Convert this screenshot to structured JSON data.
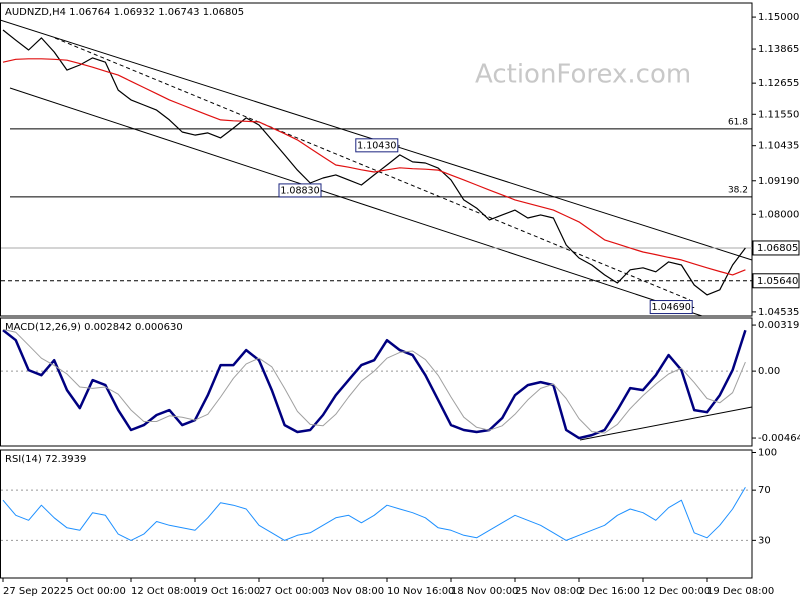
{
  "chart_data": [
    {
      "type": "line",
      "title": "AUDNZD,H4  1.06764 1.06932 1.06743 1.06805",
      "watermark": "ActionForex.com",
      "categories": [
        "27 Sep 2022",
        null,
        null,
        null,
        null,
        "5 Oct 00:00",
        null,
        null,
        null,
        null,
        "12 Oct 08:00",
        null,
        null,
        null,
        null,
        "19 Oct 16:00",
        null,
        null,
        null,
        null,
        "27 Oct 00:00",
        null,
        null,
        null,
        null,
        "3 Nov 08:00",
        null,
        null,
        null,
        null,
        "10 Nov 16:00",
        null,
        null,
        null,
        null,
        "18 Nov 00:00",
        null,
        null,
        null,
        null,
        "25 Nov 08:00",
        null,
        null,
        null,
        null,
        "2 Dec 16:00",
        null,
        null,
        null,
        null,
        "12 Dec 00:00",
        null,
        null,
        null,
        null,
        "19 Dec 08:00",
        null,
        null,
        null
      ],
      "series": [
        {
          "color": "#000000",
          "values": [
            1.1454,
            1.1418,
            1.1383,
            1.1426,
            1.1376,
            1.1312,
            1.133,
            1.1355,
            1.134,
            1.1241,
            1.1206,
            1.1188,
            1.117,
            1.1135,
            1.1092,
            1.1081,
            1.1089,
            1.1071,
            1.1106,
            1.1142,
            1.1117,
            1.1064,
            1.1011,
            1.0957,
            1.0911,
            1.0929,
            1.094,
            1.0922,
            1.0904,
            1.094,
            1.0975,
            1.1011,
            1.0986,
            1.0982,
            1.0964,
            1.0922,
            1.0851,
            1.0822,
            1.078,
            1.0798,
            1.0815,
            1.0787,
            1.0798,
            1.0787,
            1.0691,
            1.0645,
            1.062,
            1.0585,
            1.0556,
            1.0603,
            1.061,
            1.0596,
            1.0631,
            1.062,
            1.0549,
            1.0514,
            1.0532,
            1.062,
            1.06805
          ]
        },
        {
          "color": "#e01010",
          "values": [
            1.134,
            1.135,
            1.1352,
            1.1352,
            1.135,
            1.1347,
            1.1335,
            1.1322,
            1.1308,
            1.1294,
            1.1272,
            1.125,
            1.1228,
            1.1206,
            1.1188,
            1.117,
            1.1152,
            1.1135,
            1.1132,
            1.113,
            1.1128,
            1.1107,
            1.1086,
            1.1064,
            1.1034,
            1.1004,
            1.0975,
            1.0967,
            1.0958,
            1.095,
            1.0958,
            1.0965,
            1.0962,
            1.096,
            1.0957,
            1.0939,
            1.0922,
            1.0904,
            1.0886,
            1.0869,
            1.0851,
            1.0839,
            1.0827,
            1.0815,
            1.0794,
            1.0773,
            1.0741,
            1.0709,
            1.0695,
            1.068,
            1.0666,
            1.0657,
            1.0647,
            1.0638,
            1.0624,
            1.061,
            1.0597,
            1.0585,
            1.0603
          ]
        }
      ],
      "ylim": [
        1.0439,
        1.155
      ],
      "yticks": [
        {
          "value": 1.15,
          "label": "1.15000"
        },
        1.13865,
        1.12655,
        {
          "value": 1.1155,
          "label": "1.11550"
        },
        1.10435,
        {
          "value": 1.0919,
          "label": "1.09190"
        },
        {
          "value": 1.08,
          "label": "1.08000"
        },
        1.04535
      ],
      "price_labels": [
        {
          "value": 1.06805,
          "label": "1.06805",
          "dashed": false
        },
        {
          "value": 1.0564,
          "label": "1.05640",
          "dashed": true
        }
      ],
      "levels": [
        {
          "name": "61.8",
          "value": 1.1103
        },
        {
          "name": "38.2",
          "value": 1.0862
        }
      ],
      "annotations": [
        {
          "label": "1.10430",
          "value": 1.1043,
          "x": 31
        },
        {
          "label": "1.08830",
          "value": 1.0883,
          "x": 25
        },
        {
          "label": "1.04690",
          "value": 1.0469,
          "x": 54
        }
      ]
    },
    {
      "type": "line",
      "title": "MACD(12,26,9) 0.002842 0.000630",
      "series": [
        {
          "color": "#000080",
          "width": 2.5,
          "values": [
            0.00285,
            0.00215,
            7e-05,
            -0.00028,
            0.00076,
            -0.00132,
            -0.00257,
            -0.00062,
            -0.00097,
            -0.00271,
            -0.00409,
            -0.00375,
            -0.00305,
            -0.00271,
            -0.00375,
            -0.0034,
            -0.00167,
            0.00042,
            0.00042,
            0.00146,
            0.00076,
            -0.00132,
            -0.00375,
            -0.00423,
            -0.00409,
            -0.00305,
            -0.00167,
            -0.00062,
            0.00042,
            0.00076,
            0.00215,
            0.00146,
            0.00111,
            -0.00028,
            -0.00201,
            -0.00375,
            -0.00409,
            -0.00423,
            -0.00409,
            -0.00326,
            -0.00167,
            -0.00097,
            -0.00076,
            -0.00097,
            -0.00409,
            -0.00465,
            -0.00444,
            -0.00409,
            -0.00271,
            -0.00118,
            -0.00132,
            -0.00028,
            0.00111,
            7e-05,
            -0.00271,
            -0.00285,
            -0.00167,
            7e-05,
            0.002842
          ]
        },
        {
          "color": "#a0a0a0",
          "width": 1,
          "values": [
            0.0029,
            0.0027,
            0.0018,
            0.0009,
            0.0004,
            -0.0002,
            -0.0011,
            -0.0012,
            -0.0011,
            -0.0016,
            -0.0027,
            -0.0035,
            -0.0035,
            -0.0031,
            -0.0032,
            -0.0034,
            -0.003,
            -0.0018,
            -0.0005,
            0.0005,
            0.0009,
            0.0003,
            -0.0012,
            -0.0028,
            -0.0037,
            -0.0038,
            -0.003,
            -0.0018,
            -0.0007,
            0,
            0.0009,
            0.0013,
            0.0014,
            0.0008,
            -0.0003,
            -0.0018,
            -0.0032,
            -0.0039,
            -0.0041,
            -0.0038,
            -0.003,
            -0.002,
            -0.0012,
            -0.0009,
            -0.0019,
            -0.0033,
            -0.0042,
            -0.0043,
            -0.0037,
            -0.0026,
            -0.0017,
            -0.0009,
            -0.0002,
            0.0002,
            -0.0008,
            -0.0019,
            -0.0022,
            -0.0015,
            0.00063
          ]
        }
      ],
      "ylim": [
        -0.0052,
        0.00369
      ],
      "yticks": [
        0.003199,
        {
          "value": 0,
          "label": "0.00"
        },
        -0.004647
      ],
      "ref_lines": [
        0
      ]
    },
    {
      "type": "line",
      "title": "RSI(14) 72.3939",
      "series": [
        {
          "color": "#1e90ff",
          "width": 1,
          "values": [
            62,
            50,
            46,
            58,
            48,
            40,
            38,
            52,
            50,
            35,
            30,
            35,
            45,
            42,
            40,
            38,
            48,
            60,
            58,
            55,
            42,
            36,
            30,
            34,
            36,
            42,
            48,
            50,
            44,
            50,
            58,
            55,
            52,
            48,
            40,
            38,
            34,
            32,
            38,
            44,
            50,
            46,
            42,
            36,
            30,
            34,
            38,
            42,
            50,
            55,
            52,
            46,
            56,
            62,
            36,
            32,
            42,
            55,
            72.3939
          ]
        }
      ],
      "ylim": [
        0,
        102
      ],
      "yticks": [
        100,
        70,
        30
      ],
      "ref_lines": [
        70,
        30
      ]
    }
  ]
}
